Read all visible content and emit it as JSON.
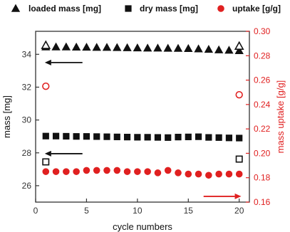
{
  "chart_data": {
    "type": "scatter",
    "xlabel": "cycle numbers",
    "ylabel": "mass [mg]",
    "y2label": "mass uptake [g/g]",
    "xlim": [
      0,
      21
    ],
    "ylim": [
      25,
      35.4
    ],
    "y2lim": [
      0.16,
      0.3
    ],
    "xticks": [
      0,
      5,
      10,
      15,
      20
    ],
    "yticks": [
      26,
      28,
      30,
      32,
      34
    ],
    "y2ticks": [
      0.16,
      0.18,
      0.2,
      0.22,
      0.24,
      0.26,
      0.28,
      0.3
    ],
    "y2tick_labels": [
      "0.16",
      "0.18",
      "0.20",
      "0.22",
      "0.24",
      "0.26",
      "0.28",
      "0.30"
    ],
    "grid": false,
    "legend_position": "top",
    "colors": {
      "black": "#111111",
      "red": "#e02020",
      "axis": "#333333"
    },
    "series": [
      {
        "name": "loaded mass [mg]",
        "marker": "triangle",
        "axis": "left",
        "color": "#111111",
        "x": [
          1,
          2,
          3,
          4,
          5,
          6,
          7,
          8,
          9,
          10,
          11,
          12,
          13,
          14,
          15,
          16,
          17,
          18,
          19,
          20
        ],
        "y": [
          34.45,
          34.45,
          34.45,
          34.44,
          34.43,
          34.42,
          34.42,
          34.41,
          34.4,
          34.39,
          34.38,
          34.38,
          34.37,
          34.36,
          34.35,
          34.33,
          34.3,
          34.27,
          34.25,
          34.22
        ]
      },
      {
        "name": "dry mass  [mg]",
        "marker": "square",
        "axis": "left",
        "color": "#111111",
        "x": [
          1,
          2,
          3,
          4,
          5,
          6,
          7,
          8,
          9,
          10,
          11,
          12,
          13,
          14,
          15,
          16,
          17,
          18,
          19,
          20
        ],
        "y": [
          29.02,
          29.02,
          29.01,
          29.0,
          29.0,
          28.99,
          28.98,
          28.97,
          28.96,
          28.95,
          28.95,
          28.94,
          28.93,
          28.96,
          28.97,
          28.98,
          28.94,
          28.93,
          28.91,
          28.9
        ]
      },
      {
        "name": "uptake [g/g]",
        "marker": "circle",
        "axis": "right",
        "color": "#e02020",
        "x": [
          1,
          2,
          3,
          4,
          5,
          6,
          7,
          8,
          9,
          10,
          11,
          12,
          13,
          14,
          15,
          16,
          17,
          18,
          19,
          20
        ],
        "y": [
          0.185,
          0.185,
          0.185,
          0.185,
          0.186,
          0.186,
          0.186,
          0.186,
          0.185,
          0.185,
          0.185,
          0.184,
          0.186,
          0.184,
          0.183,
          0.183,
          0.182,
          0.183,
          0.183,
          0.183
        ]
      }
    ],
    "outliers": [
      {
        "series": "loaded mass [mg]",
        "marker": "open-triangle",
        "axis": "left",
        "color": "#111111",
        "x": [
          1,
          20
        ],
        "y": [
          34.55,
          34.5
        ]
      },
      {
        "series": "dry mass  [mg]",
        "marker": "open-square",
        "axis": "left",
        "color": "#111111",
        "x": [
          1,
          20
        ],
        "y": [
          27.45,
          27.62
        ]
      },
      {
        "series": "uptake [g/g]",
        "marker": "open-circle",
        "axis": "right",
        "color": "#e02020",
        "x": [
          1,
          20
        ],
        "y": [
          0.255,
          0.248
        ]
      }
    ],
    "arrows": [
      {
        "color": "#111111",
        "direction": "left",
        "x_from": 4.6,
        "x_to": 0.9,
        "axis": "left",
        "y": 33.5
      },
      {
        "color": "#111111",
        "direction": "left",
        "x_from": 4.6,
        "x_to": 0.9,
        "axis": "left",
        "y": 27.95
      },
      {
        "color": "#e02020",
        "direction": "right",
        "x_from": 16.5,
        "x_to": 20.2,
        "axis": "left",
        "y": 25.35
      }
    ]
  }
}
